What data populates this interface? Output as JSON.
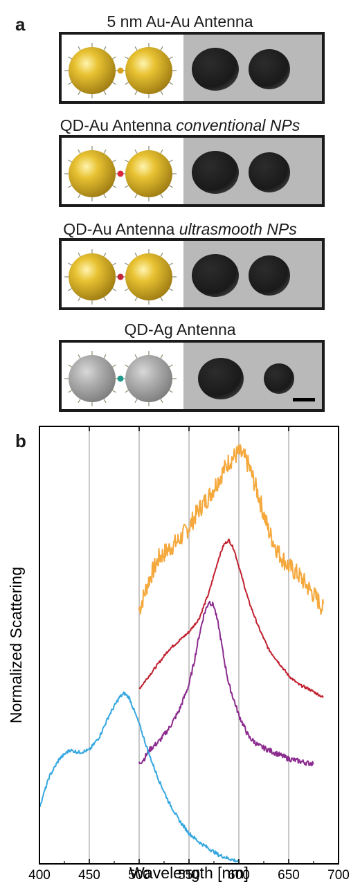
{
  "panel_a": {
    "letter": "a",
    "antennas": [
      {
        "title": "5 nm Au-Au Antenna",
        "title_em": "",
        "color": "#f5a83b",
        "sphere": "gold",
        "linker": "#d8a21f"
      },
      {
        "title": "QD-Au Antenna ",
        "title_em": "conventional NPs",
        "color": "#c0202f",
        "sphere": "gold",
        "linker": "#d8283a"
      },
      {
        "title": "QD-Au Antenna ",
        "title_em": "ultrasmooth NPs",
        "color": "#8b2b8f",
        "sphere": "gold",
        "linker": "#c02636"
      },
      {
        "title": "QD-Ag Antenna",
        "title_em": "",
        "color": "#36a8e0",
        "sphere": "silver",
        "linker": "#1f9a8a"
      }
    ],
    "scale_bar": "scale-bar"
  },
  "panel_b": {
    "letter": "b"
  },
  "chart_data": {
    "type": "line",
    "xlabel": "Wavelength [nm]",
    "ylabel": "Normalized Scattering",
    "xlim": [
      400,
      700
    ],
    "xticks": [
      400,
      450,
      500,
      550,
      600,
      650,
      700
    ],
    "ylim": [
      0,
      1
    ],
    "grid": "vertical lines at 450, 500, 550, 600, 650",
    "legend": "none",
    "series": [
      {
        "color": "#f5a83b",
        "noise": 0.022,
        "x": [
          500,
          510,
          520,
          530,
          540,
          550,
          560,
          570,
          580,
          590,
          595,
          600,
          605,
          610,
          620,
          630,
          640,
          650,
          660,
          670,
          680,
          685
        ],
        "y": [
          0.58,
          0.65,
          0.7,
          0.72,
          0.74,
          0.77,
          0.81,
          0.84,
          0.88,
          0.92,
          0.93,
          0.94,
          0.93,
          0.91,
          0.84,
          0.76,
          0.71,
          0.68,
          0.66,
          0.63,
          0.6,
          0.58
        ]
      },
      {
        "color": "#c0202f",
        "noise": 0.003,
        "x": [
          500,
          510,
          520,
          530,
          540,
          550,
          560,
          570,
          575,
          580,
          585,
          590,
          595,
          600,
          610,
          620,
          630,
          640,
          650,
          660,
          670,
          685
        ],
        "y": [
          0.4,
          0.43,
          0.46,
          0.49,
          0.51,
          0.53,
          0.56,
          0.62,
          0.66,
          0.7,
          0.73,
          0.74,
          0.72,
          0.68,
          0.6,
          0.54,
          0.49,
          0.46,
          0.43,
          0.41,
          0.4,
          0.38
        ]
      },
      {
        "color": "#8b2b8f",
        "noise": 0.006,
        "x": [
          500,
          505,
          510,
          520,
          530,
          540,
          550,
          555,
          560,
          565,
          570,
          575,
          580,
          585,
          590,
          600,
          610,
          620,
          630,
          640,
          650,
          660,
          670,
          675
        ],
        "y": [
          0.23,
          0.24,
          0.26,
          0.28,
          0.31,
          0.35,
          0.41,
          0.46,
          0.52,
          0.57,
          0.6,
          0.59,
          0.54,
          0.47,
          0.41,
          0.34,
          0.29,
          0.27,
          0.26,
          0.25,
          0.24,
          0.235,
          0.23,
          0.23
        ]
      },
      {
        "color": "#36a8e0",
        "noise": 0.004,
        "x": [
          400,
          410,
          420,
          430,
          440,
          450,
          460,
          470,
          480,
          485,
          490,
          500,
          510,
          520,
          530,
          540,
          550,
          560,
          570,
          580,
          590,
          600
        ],
        "y": [
          0.13,
          0.2,
          0.24,
          0.26,
          0.255,
          0.26,
          0.29,
          0.34,
          0.38,
          0.39,
          0.38,
          0.32,
          0.25,
          0.19,
          0.14,
          0.1,
          0.07,
          0.05,
          0.035,
          0.02,
          0.012,
          0.005
        ]
      }
    ]
  }
}
